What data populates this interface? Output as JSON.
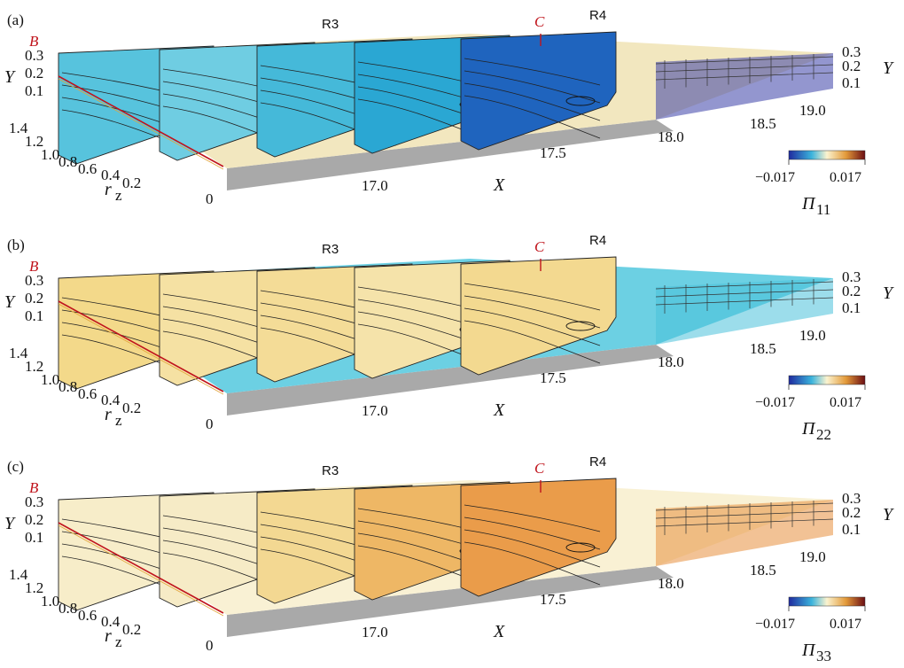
{
  "colors": {
    "cmap_neg": "#1f2a9e",
    "cmap_mid": "#fbf3cf",
    "cmap_pos": "#6b0d12",
    "marker_red": "#c0141c",
    "wall_grey": "#a9a9a9"
  },
  "panels": [
    {
      "id": "a",
      "panel_label": "(a)",
      "region_left": "R3",
      "region_right": "R4",
      "marker_b": "B",
      "marker_c": "C",
      "y_axis_label": "Y",
      "y_ticks": [
        "0.3",
        "0.2",
        "0.1"
      ],
      "rz_ticks": [
        "1.4",
        "1.2",
        "1.0",
        "0.8",
        "0.6",
        "0.4",
        "0.2",
        "0"
      ],
      "rz_label": "r",
      "rz_sub": "z",
      "x_ticks": [
        "17.0",
        "17.5",
        "18.0",
        "18.5",
        "19.0"
      ],
      "x_label": "X",
      "colorbar_min": "−0.017",
      "colorbar_max": "0.017",
      "colorbar_symbol": "Π",
      "colorbar_sub": "11",
      "slice_tones": [
        "#57c3dd",
        "#6fcde2",
        "#45b9d9",
        "#2aa7d3",
        "#1f64be"
      ],
      "floor_tone": "#f1e4b8",
      "far_tone": "#3a3fa8"
    },
    {
      "id": "b",
      "panel_label": "(b)",
      "region_left": "R3",
      "region_right": "R4",
      "marker_b": "B",
      "marker_c": "C",
      "y_axis_label": "Y",
      "y_ticks": [
        "0.3",
        "0.2",
        "0.1"
      ],
      "rz_ticks": [
        "1.4",
        "1.2",
        "1.0",
        "0.8",
        "0.6",
        "0.4",
        "0.2",
        "0"
      ],
      "rz_label": "r",
      "rz_sub": "z",
      "x_ticks": [
        "17.0",
        "17.5",
        "18.0",
        "18.5",
        "19.0"
      ],
      "x_label": "X",
      "colorbar_min": "−0.017",
      "colorbar_max": "0.017",
      "colorbar_symbol": "Π",
      "colorbar_sub": "22",
      "slice_tones": [
        "#f3d98a",
        "#f5e1a3",
        "#f4dc97",
        "#f5e3aa",
        "#f3d990"
      ],
      "floor_tone": "#5ccbe0",
      "far_tone": "#4bc1db"
    },
    {
      "id": "c",
      "panel_label": "(c)",
      "region_left": "R3",
      "region_right": "R4",
      "marker_b": "B",
      "marker_c": "C",
      "y_axis_label": "Y",
      "y_ticks": [
        "0.3",
        "0.2",
        "0.1"
      ],
      "rz_ticks": [
        "1.4",
        "1.2",
        "1.0",
        "0.8",
        "0.6",
        "0.4",
        "0.2",
        "0"
      ],
      "rz_label": "r",
      "rz_sub": "z",
      "x_ticks": [
        "17.0",
        "17.5",
        "18.0",
        "18.5",
        "19.0"
      ],
      "x_label": "X",
      "colorbar_min": "−0.017",
      "colorbar_max": "0.017",
      "colorbar_symbol": "Π",
      "colorbar_sub": "33",
      "slice_tones": [
        "#f7edc9",
        "#f6ebc6",
        "#f3d892",
        "#eeb765",
        "#ea9c4a"
      ],
      "floor_tone": "#f8efcf",
      "far_tone": "#e88f3e"
    }
  ]
}
